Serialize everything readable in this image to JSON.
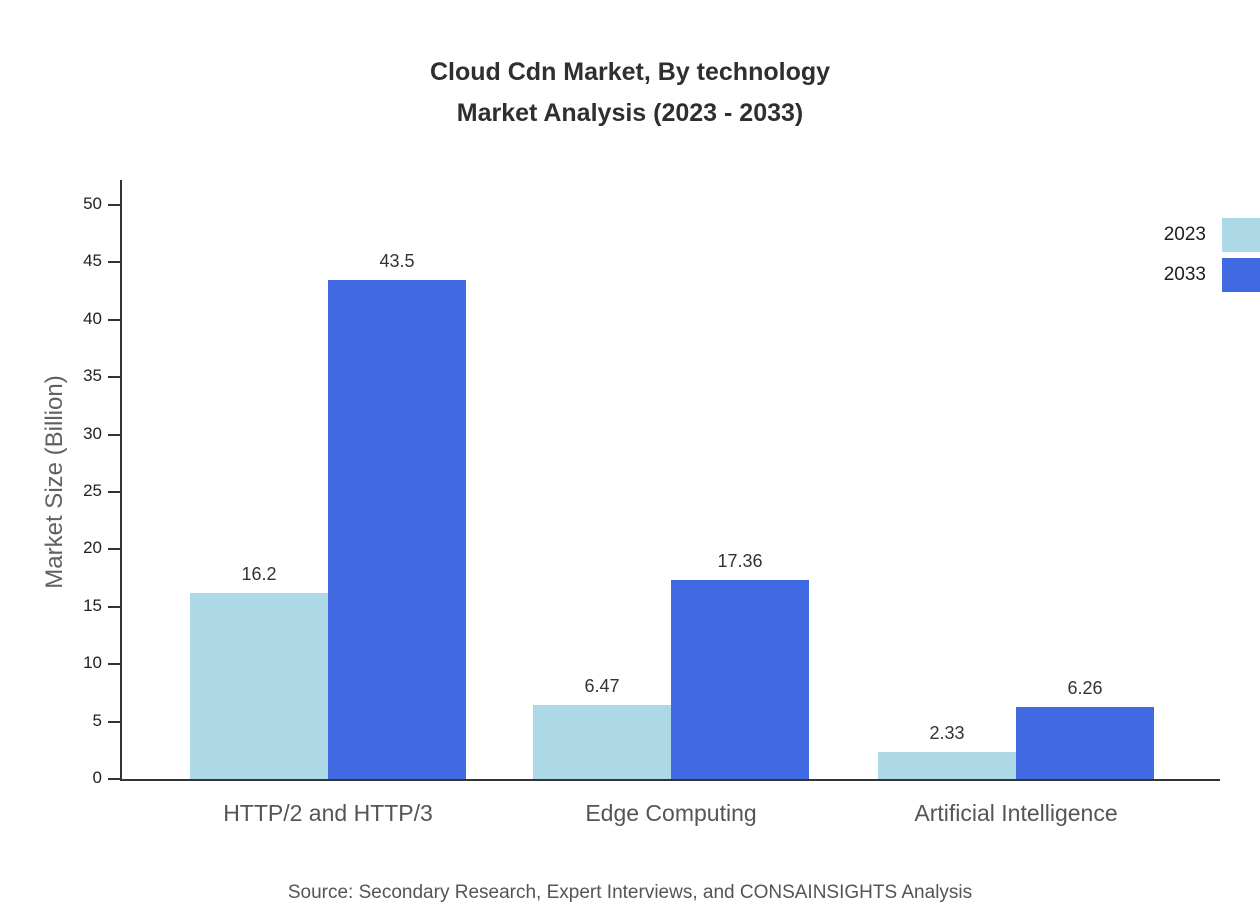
{
  "chart_data": {
    "type": "bar",
    "title": "Cloud Cdn Market, By technology",
    "subtitle": "Market Analysis (2023 - 2033)",
    "categories": [
      "HTTP/2 and HTTP/3",
      "Edge Computing",
      "Artificial Intelligence"
    ],
    "series": [
      {
        "name": "2023",
        "color": "#ADD8E6",
        "values": [
          16.2,
          6.47,
          2.33
        ]
      },
      {
        "name": "2033",
        "color": "#4169E1",
        "values": [
          43.5,
          17.36,
          6.26
        ]
      }
    ],
    "xlabel": "",
    "ylabel": "Market Size (Billion)",
    "ylim": [
      0,
      50
    ],
    "ytick_step": 5,
    "grid": false,
    "legend_position": "top-right",
    "value_labels_shown": true
  },
  "source_note": "Source: Secondary Research, Expert Interviews, and CONSAINSIGHTS Analysis"
}
